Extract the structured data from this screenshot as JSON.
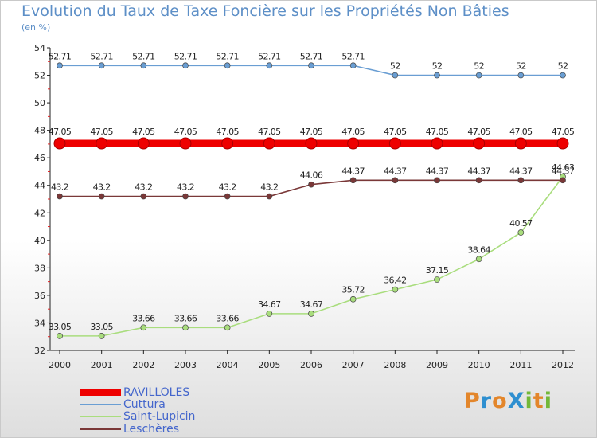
{
  "header": {
    "title": "Evolution du Taux de Taxe Foncière sur les Propriétés Non Bâties",
    "subtitle": "(en %)"
  },
  "logo": {
    "text": "ProXiti",
    "letters": [
      {
        "ch": "P",
        "color": "#e3862b"
      },
      {
        "ch": "r",
        "color": "#2e8fd0"
      },
      {
        "ch": "o",
        "color": "#e3862b"
      },
      {
        "ch": "X",
        "color": "#2e8fd0"
      },
      {
        "ch": "i",
        "color": "#73b839"
      },
      {
        "ch": "t",
        "color": "#e3862b"
      },
      {
        "ch": "i",
        "color": "#73b839"
      }
    ]
  },
  "chart_data": {
    "type": "line",
    "title": "Evolution du Taux de Taxe Foncière sur les Propriétés Non Bâties",
    "subtitle": "(en %)",
    "x": [
      "2000",
      "2001",
      "2002",
      "2003",
      "2004",
      "2005",
      "2006",
      "2007",
      "2008",
      "2009",
      "2010",
      "2011",
      "2012"
    ],
    "ylim": [
      32,
      54
    ],
    "yticks": [
      32,
      34,
      36,
      38,
      40,
      42,
      44,
      46,
      48,
      50,
      52,
      54
    ],
    "grid": false,
    "legend_position": "bottom-left",
    "series": [
      {
        "name": "RAVILLOLES",
        "color": "#ee0000",
        "emphasis": true,
        "values": [
          47.05,
          47.05,
          47.05,
          47.05,
          47.05,
          47.05,
          47.05,
          47.05,
          47.05,
          47.05,
          47.05,
          47.05,
          47.05
        ],
        "labels": [
          "47.05",
          "47.05",
          "47.05",
          "47.05",
          "47.05",
          "47.05",
          "47.05",
          "47.05",
          "47.05",
          "47.05",
          "47.05",
          "47.05",
          "47.05"
        ]
      },
      {
        "name": "Cuttura",
        "color": "#6a9ed3",
        "values": [
          52.71,
          52.71,
          52.71,
          52.71,
          52.71,
          52.71,
          52.71,
          52.71,
          52,
          52,
          52,
          52,
          52
        ],
        "labels": [
          "52.71",
          "52.71",
          "52.71",
          "52.71",
          "52.71",
          "52.71",
          "52.71",
          "52.71",
          "52",
          "52",
          "52",
          "52",
          "52"
        ]
      },
      {
        "name": "Saint-Lupicin",
        "color": "#a9dd7d",
        "values": [
          33.05,
          33.05,
          33.66,
          33.66,
          33.66,
          34.67,
          34.67,
          35.72,
          36.42,
          37.15,
          38.64,
          40.57,
          44.63
        ],
        "labels": [
          "33.05",
          "33.05",
          "33.66",
          "33.66",
          "33.66",
          "34.67",
          "34.67",
          "35.72",
          "36.42",
          "37.15",
          "38.64",
          "40.57",
          "44.63"
        ]
      },
      {
        "name": "Leschères",
        "color": "#7a3838",
        "values": [
          43.2,
          43.2,
          43.2,
          43.2,
          43.2,
          43.2,
          44.06,
          44.37,
          44.37,
          44.37,
          44.37,
          44.37,
          44.37
        ],
        "labels": [
          "43.2",
          "43.2",
          "43.2",
          "43.2",
          "43.2",
          "43.2",
          "44.06",
          "44.37",
          "44.37",
          "44.37",
          "44.37",
          "44.37",
          "44.37"
        ]
      }
    ]
  }
}
